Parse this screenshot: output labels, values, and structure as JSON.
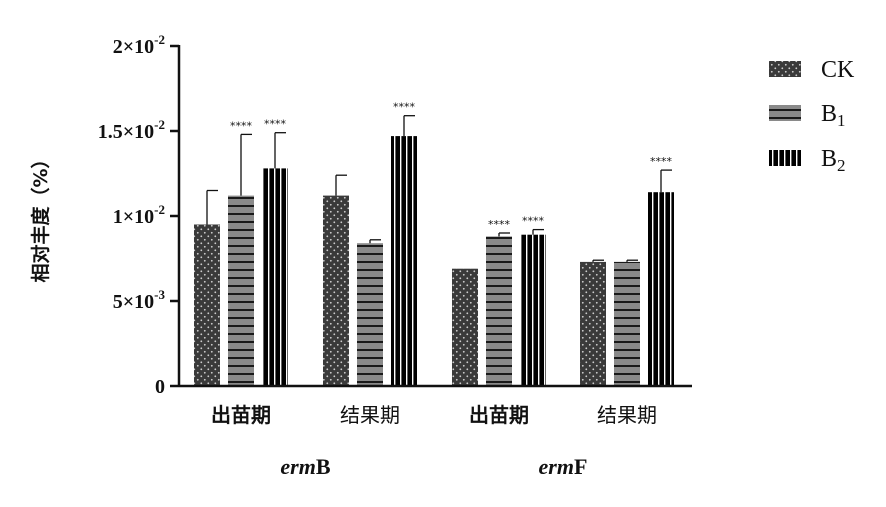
{
  "chart_data": {
    "type": "bar",
    "title": "",
    "ylabel": "相对丰度（%）",
    "ylim": [
      0,
      0.02
    ],
    "yticks": [
      {
        "value": 0,
        "base": "0",
        "exp": ""
      },
      {
        "value": 0.005,
        "base": "5×10",
        "exp": "-3"
      },
      {
        "value": 0.01,
        "base": "1×10",
        "exp": "-2"
      },
      {
        "value": 0.015,
        "base": "1.5×10",
        "exp": "-2"
      },
      {
        "value": 0.02,
        "base": "2×10",
        "exp": "-2"
      }
    ],
    "categories": [
      "出苗期",
      "结果期",
      "出苗期",
      "结果期"
    ],
    "category_groups": [
      {
        "italic": "erm",
        "rest": "B",
        "categories": [
          0,
          1
        ]
      },
      {
        "italic": "erm",
        "rest": "F",
        "categories": [
          2,
          3
        ]
      }
    ],
    "series": [
      {
        "name": "CK",
        "sub": "",
        "pattern": "dots",
        "values": [
          0.0095,
          0.0112,
          0.0069,
          0.0073
        ],
        "errors": [
          0.002,
          0.0012,
          0.0,
          0.0001
        ],
        "sig": [
          "",
          "",
          "",
          ""
        ]
      },
      {
        "name": "B",
        "sub": "1",
        "pattern": "hlines",
        "values": [
          0.0112,
          0.0084,
          0.0088,
          0.0073
        ],
        "errors": [
          0.0036,
          0.0002,
          0.0002,
          0.0001
        ],
        "sig": [
          "****",
          "",
          "****",
          ""
        ]
      },
      {
        "name": "B",
        "sub": "2",
        "pattern": "vlines",
        "values": [
          0.0128,
          0.0147,
          0.0089,
          0.0114
        ],
        "errors": [
          0.0021,
          0.0012,
          0.0003,
          0.0013
        ],
        "sig": [
          "****",
          "****",
          "****",
          "****"
        ]
      }
    ],
    "colors": {
      "fill": "#3a3a3a",
      "hline": "#888888",
      "vbar": "#000000"
    },
    "legend": "right",
    "grid": false
  }
}
